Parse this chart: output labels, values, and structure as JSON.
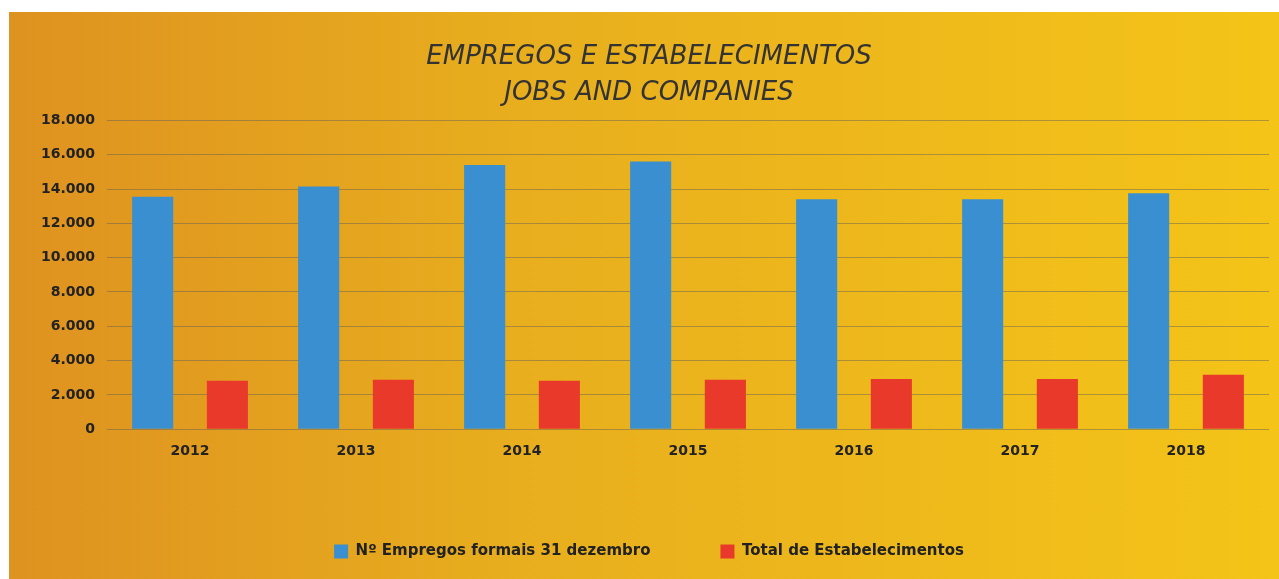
{
  "chart_data": {
    "type": "bar",
    "title": "EMPREGOS E ESTABELECIMENTOS",
    "subtitle": "JOBS AND COMPANIES",
    "categories": [
      "2012",
      "2013",
      "2014",
      "2015",
      "2016",
      "2017",
      "2018"
    ],
    "series": [
      {
        "name": "Nº Empregos formais 31 dezembro",
        "color": "#3a8fd0",
        "values": [
          13550,
          14150,
          15400,
          15600,
          13400,
          13400,
          13750
        ]
      },
      {
        "name": "Total de Estabelecimentos",
        "color": "#e8392a",
        "values": [
          2830,
          2880,
          2830,
          2880,
          2930,
          2930,
          3180
        ]
      }
    ],
    "ylim": [
      0,
      18000
    ],
    "yticks": [
      {
        "value": 0,
        "label": "0"
      },
      {
        "value": 2000,
        "label": "2.000"
      },
      {
        "value": 4000,
        "label": "4.000"
      },
      {
        "value": 6000,
        "label": "6.000"
      },
      {
        "value": 8000,
        "label": "8.000"
      },
      {
        "value": 10000,
        "label": "10.000"
      },
      {
        "value": 12000,
        "label": "12.000"
      },
      {
        "value": 14000,
        "label": "14.000"
      },
      {
        "value": 16000,
        "label": "16.000"
      },
      {
        "value": 18000,
        "label": "18.000"
      }
    ],
    "grid": "y",
    "legend": "bottom"
  }
}
